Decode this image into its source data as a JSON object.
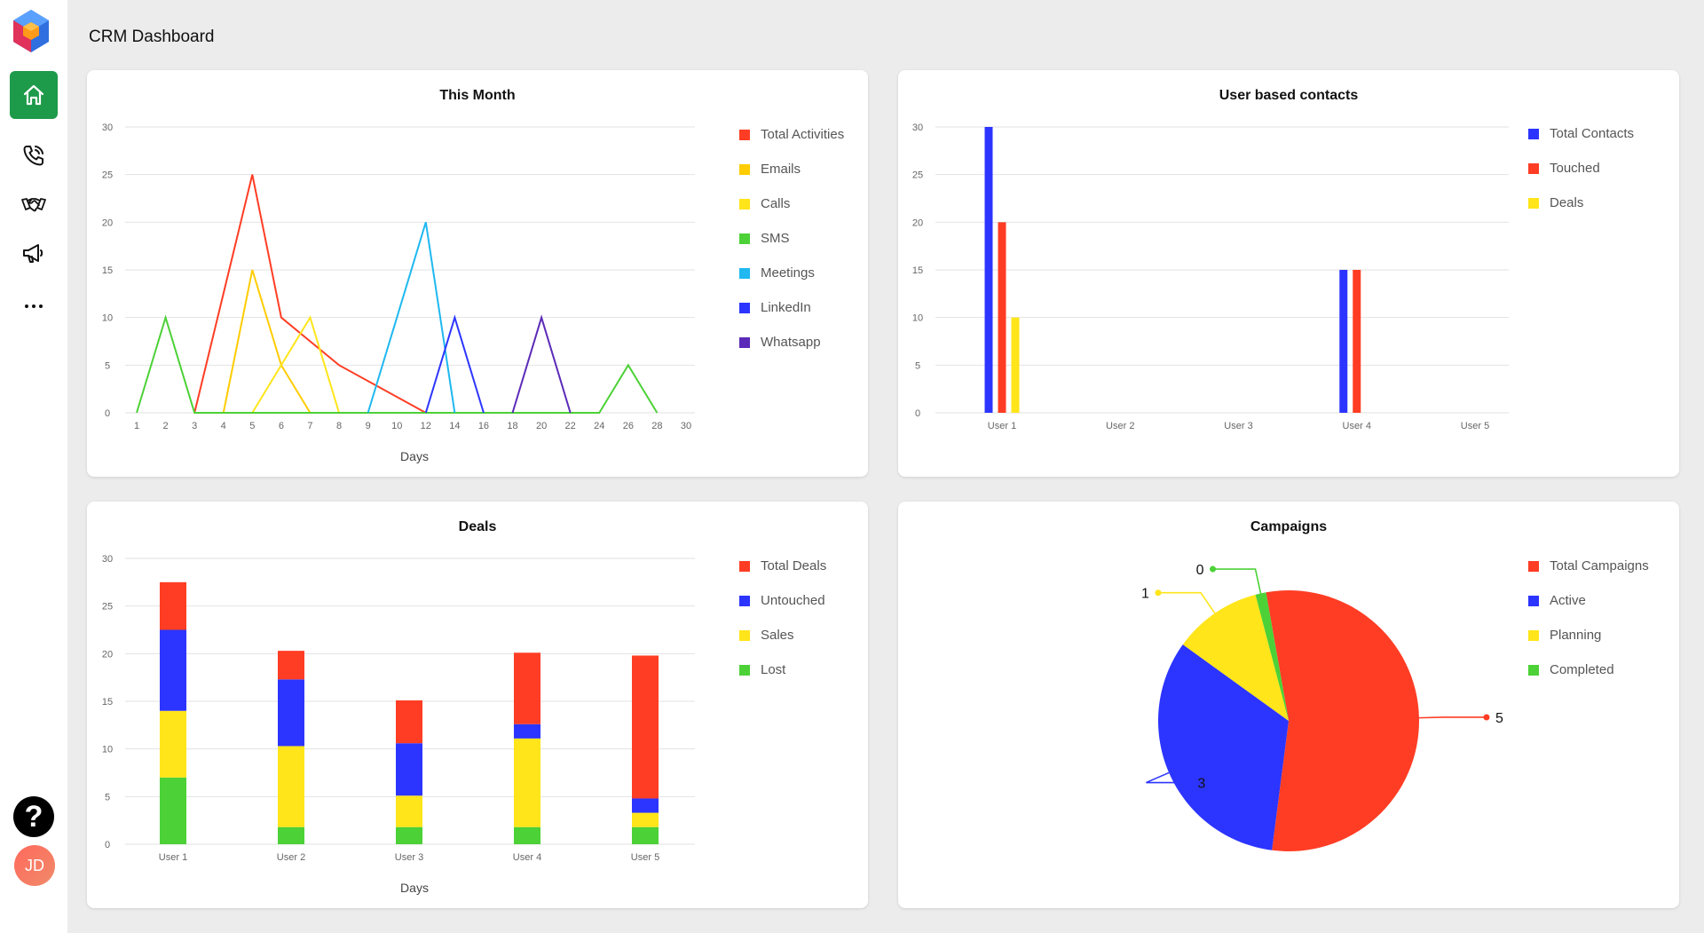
{
  "colors": {
    "accent": "#1d9a4a",
    "red": "#ff3d24",
    "orange_yellow": "#ffcc00",
    "yellow": "#ffe51a",
    "green": "#4cd137",
    "cyan": "#1fb8f0",
    "blue": "#2c35ff",
    "purple": "#5b2ab8"
  },
  "sidebar": {
    "logo": "hexagon-logo-icon",
    "items": [
      {
        "icon": "home-icon",
        "active": true
      },
      {
        "icon": "phone-icon",
        "active": false
      },
      {
        "icon": "handshake-icon",
        "active": false
      },
      {
        "icon": "megaphone-icon",
        "active": false
      },
      {
        "icon": "more-icon",
        "active": false
      }
    ],
    "help_label": "?",
    "avatar_initials": "JD"
  },
  "page_title": "CRM Dashboard",
  "charts": {
    "this_month": {
      "type": "line",
      "title": "This Month",
      "xlabel": "Days",
      "x_ticks": [
        "1",
        "2",
        "3",
        "4",
        "5",
        "6",
        "7",
        "8",
        "9",
        "10",
        "12",
        "14",
        "16",
        "18",
        "20",
        "22",
        "24",
        "26",
        "28",
        "30"
      ],
      "ylim": [
        0,
        30
      ],
      "y_ticks": [
        0,
        5,
        10,
        15,
        20,
        25,
        30
      ],
      "series": [
        {
          "name": "Total Activities",
          "color": "#ff3d24",
          "x": [
            "3",
            "5",
            "6",
            "8",
            "12"
          ],
          "values": [
            0,
            25,
            10,
            5,
            0
          ]
        },
        {
          "name": "Emails",
          "color": "#ffcc00",
          "x": [
            "4",
            "5",
            "6",
            "7"
          ],
          "values": [
            0,
            15,
            5,
            0
          ]
        },
        {
          "name": "Calls",
          "color": "#ffe51a",
          "x": [
            "5",
            "7",
            "8"
          ],
          "values": [
            0,
            10,
            0
          ]
        },
        {
          "name": "SMS",
          "color": "#4cd137",
          "x": [
            "1",
            "2",
            "3",
            "24",
            "26",
            "28"
          ],
          "values": [
            0,
            10,
            0,
            0,
            5,
            0
          ]
        },
        {
          "name": "Meetings",
          "color": "#1fb8f0",
          "x": [
            "9",
            "12",
            "14"
          ],
          "values": [
            0,
            20,
            0
          ]
        },
        {
          "name": "LinkedIn",
          "color": "#2c35ff",
          "x": [
            "12",
            "14",
            "16"
          ],
          "values": [
            0,
            10,
            0
          ]
        },
        {
          "name": "Whatsapp",
          "color": "#5b2ab8",
          "x": [
            "18",
            "20",
            "22"
          ],
          "values": [
            0,
            10,
            0
          ]
        }
      ]
    },
    "user_contacts": {
      "type": "bar",
      "title": "User based contacts",
      "categories": [
        "User 1",
        "User 2",
        "User 3",
        "User 4",
        "User 5"
      ],
      "ylim": [
        0,
        30
      ],
      "y_ticks": [
        0,
        5,
        10,
        15,
        20,
        25,
        30
      ],
      "series": [
        {
          "name": "Total Contacts",
          "color": "#2c35ff",
          "values": [
            30,
            0,
            0,
            15,
            0
          ]
        },
        {
          "name": "Touched",
          "color": "#ff3d24",
          "values": [
            20,
            0,
            0,
            15,
            0
          ]
        },
        {
          "name": "Deals",
          "color": "#ffe51a",
          "values": [
            10,
            0,
            0,
            0,
            0
          ]
        }
      ]
    },
    "deals": {
      "type": "stacked-bar",
      "title": "Deals",
      "xlabel": "Days",
      "categories": [
        "User 1",
        "User 2",
        "User 3",
        "User 4",
        "User 5"
      ],
      "ylim": [
        0,
        30
      ],
      "y_ticks": [
        0,
        5,
        10,
        15,
        20,
        25,
        30
      ],
      "series": [
        {
          "name": "Total Deals",
          "color": "#ff3d24",
          "values": [
            5,
            3,
            4.5,
            7.5,
            15
          ]
        },
        {
          "name": "Untouched",
          "color": "#2c35ff",
          "values": [
            8.5,
            7,
            5.5,
            1.5,
            1.5
          ]
        },
        {
          "name": "Sales",
          "color": "#ffe51a",
          "values": [
            7,
            8.5,
            3.3,
            9.3,
            1.5
          ]
        },
        {
          "name": "Lost",
          "color": "#4cd137",
          "values": [
            7,
            1.8,
            1.8,
            1.8,
            1.8
          ]
        }
      ],
      "stack_order": [
        "Lost",
        "Sales",
        "Untouched",
        "Total Deals"
      ]
    },
    "campaigns": {
      "type": "pie",
      "title": "Campaigns",
      "series": [
        {
          "name": "Total Campaigns",
          "color": "#ff3d24",
          "value": 5,
          "label": "5"
        },
        {
          "name": "Active",
          "color": "#2c35ff",
          "value": 3,
          "label": "3"
        },
        {
          "name": "Planning",
          "color": "#ffe51a",
          "value": 1,
          "label": "1"
        },
        {
          "name": "Completed",
          "color": "#4cd137",
          "value": 0.12,
          "label": "0"
        }
      ]
    }
  }
}
